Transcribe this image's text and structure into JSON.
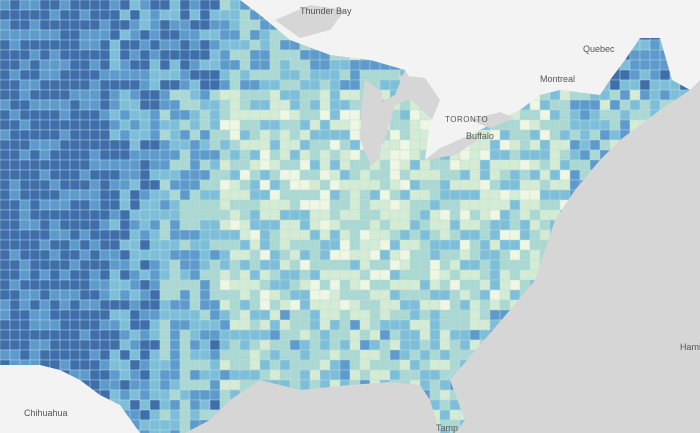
{
  "labels": [
    "Thunder Bay",
    "Quebec",
    "Montreal",
    "TORONTO",
    "Buffalo",
    "Chihuahua",
    "Tamp",
    "Hamil"
  ]
}
